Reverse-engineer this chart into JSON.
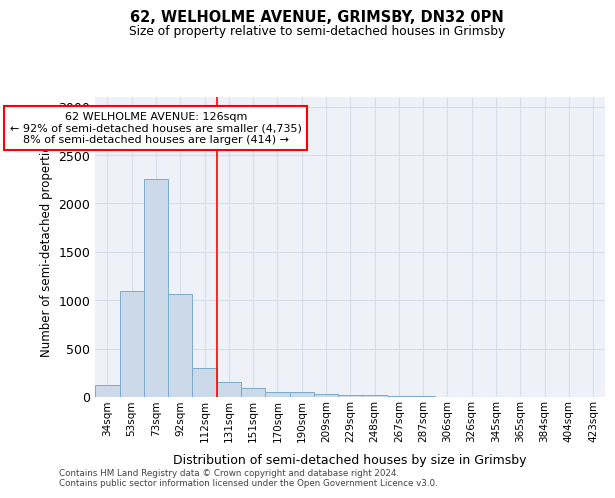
{
  "title1": "62, WELHOLME AVENUE, GRIMSBY, DN32 0PN",
  "title2": "Size of property relative to semi-detached houses in Grimsby",
  "xlabel": "Distribution of semi-detached houses by size in Grimsby",
  "ylabel": "Number of semi-detached properties",
  "categories": [
    "34sqm",
    "53sqm",
    "73sqm",
    "92sqm",
    "112sqm",
    "131sqm",
    "151sqm",
    "170sqm",
    "190sqm",
    "209sqm",
    "229sqm",
    "248sqm",
    "267sqm",
    "287sqm",
    "306sqm",
    "326sqm",
    "345sqm",
    "365sqm",
    "384sqm",
    "404sqm",
    "423sqm"
  ],
  "values": [
    120,
    1100,
    2250,
    1060,
    300,
    155,
    95,
    55,
    48,
    35,
    25,
    18,
    12,
    8,
    5,
    4,
    3,
    2,
    2,
    1,
    1
  ],
  "bar_color": "#ccd9e8",
  "bar_edge_color": "#7aaac8",
  "grid_color": "#d5dde8",
  "annotation_line1": "62 WELHOLME AVENUE: 126sqm",
  "annotation_line2": "← 92% of semi-detached houses are smaller (4,735)",
  "annotation_line3": "8% of semi-detached houses are larger (414) →",
  "property_line_x": 4.5,
  "ylim": [
    0,
    3100
  ],
  "yticks": [
    0,
    500,
    1000,
    1500,
    2000,
    2500,
    3000
  ],
  "footnote1": "Contains HM Land Registry data © Crown copyright and database right 2024.",
  "footnote2": "Contains public sector information licensed under the Open Government Licence v3.0.",
  "bg_color": "#eef2f8"
}
